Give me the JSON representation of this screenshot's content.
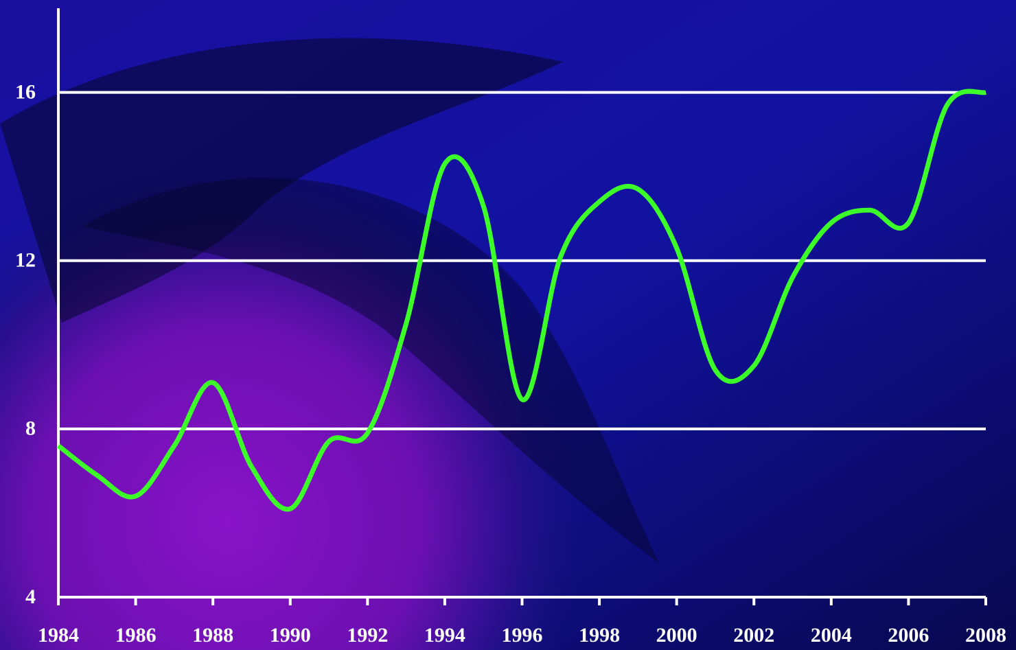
{
  "chart_data": {
    "type": "line",
    "x": [
      1984,
      1985,
      1986,
      1987,
      1988,
      1989,
      1990,
      1991,
      1992,
      1993,
      1994,
      1995,
      1996,
      1997,
      1998,
      1999,
      2000,
      2001,
      2002,
      2003,
      2004,
      2005,
      2006,
      2007,
      2008
    ],
    "series": [
      {
        "color": "#3cff2a",
        "values": [
          7.6,
          6.9,
          6.4,
          7.6,
          9.1,
          7.1,
          6.1,
          7.7,
          7.9,
          10.5,
          14.3,
          13.3,
          8.7,
          12.1,
          13.4,
          13.7,
          12.3,
          9.4,
          9.5,
          11.6,
          12.9,
          13.2,
          12.9,
          15.7,
          16.0
        ]
      }
    ],
    "xlim": [
      1984,
      2008
    ],
    "xticks": [
      1984,
      1986,
      1988,
      1990,
      1992,
      1994,
      1996,
      1998,
      2000,
      2002,
      2004,
      2006,
      2008
    ],
    "ylim": [
      4,
      18
    ],
    "yticks": [
      4,
      8,
      12,
      16
    ],
    "grid": true
  }
}
